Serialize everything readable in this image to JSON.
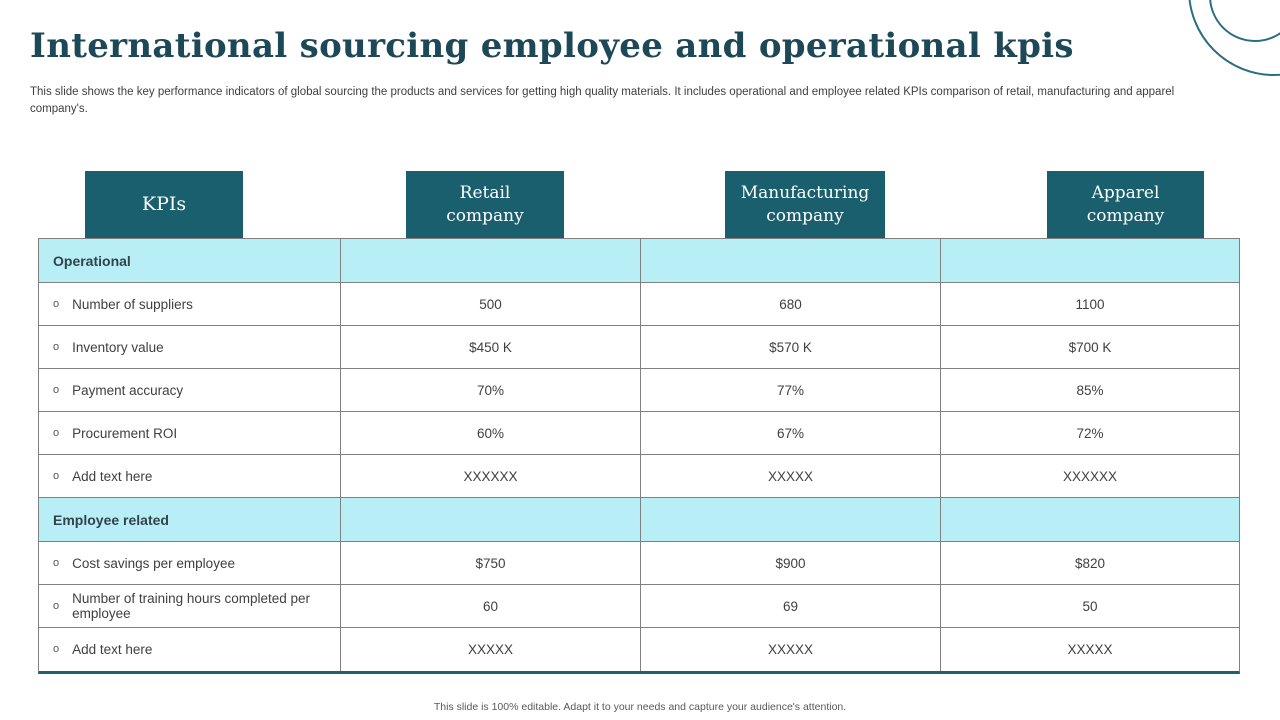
{
  "slide": {
    "title": "International sourcing employee and operational kpis",
    "description": "This slide shows the key performance indicators of global sourcing the products and services for getting high quality materials. It includes operational and employee related KPIs comparison of retail, manufacturing and apparel company's.",
    "footer": "This slide is 100% editable.  Adapt it to your needs and capture your audience's attention."
  },
  "icons": {
    "bullet": "o"
  },
  "colors": {
    "teal_dark": "#1a5f6e",
    "cyan_light": "#b8eff7",
    "title_text": "#1d4858",
    "border_gray": "#808080"
  },
  "table": {
    "headers": [
      "KPIs",
      "Retail company",
      "Manufacturing company",
      "Apparel company"
    ],
    "rows": [
      {
        "type": "section",
        "label": "Operational"
      },
      {
        "type": "data",
        "label": "Number of suppliers",
        "values": [
          "500",
          "680",
          "1100"
        ]
      },
      {
        "type": "data",
        "label": "Inventory  value",
        "values": [
          "$450 K",
          "$570 K",
          "$700 K"
        ]
      },
      {
        "type": "data",
        "label": "Payment accuracy",
        "values": [
          "70%",
          "77%",
          "85%"
        ]
      },
      {
        "type": "data",
        "label": "Procurement ROI",
        "values": [
          "60%",
          "67%",
          "72%"
        ]
      },
      {
        "type": "data",
        "label": "Add text here",
        "values": [
          "XXXXXX",
          "XXXXX",
          "XXXXXX"
        ]
      },
      {
        "type": "section",
        "label": "Employee related"
      },
      {
        "type": "data",
        "label": "Cost savings per employee",
        "values": [
          "$750",
          "$900",
          "$820"
        ]
      },
      {
        "type": "data",
        "label": "Number of training hours completed per employee",
        "values": [
          "60",
          "69",
          "50"
        ]
      },
      {
        "type": "data",
        "label": "Add text here",
        "values": [
          "XXXXX",
          "XXXXX",
          "XXXXX"
        ]
      }
    ]
  }
}
